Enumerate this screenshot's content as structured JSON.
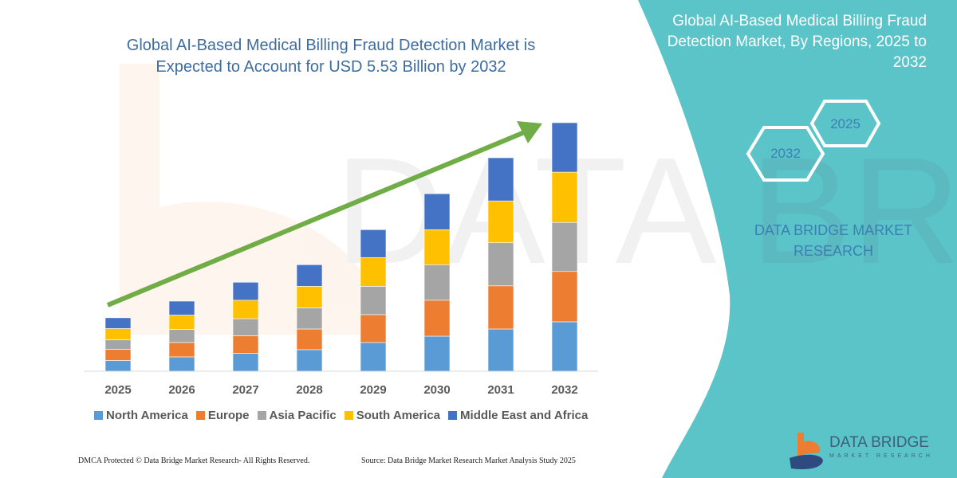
{
  "title": "Global AI-Based Medical Billing Fraud Detection Market is Expected to Account for USD 5.53 Billion by 2032",
  "side_panel": {
    "title": "Global AI-Based Medical Billing Fraud Detection Market, By Regions, 2025 to 2032",
    "hex_start": "2025",
    "hex_end": "2032",
    "brand": "DATA BRIDGE MARKET RESEARCH",
    "color": "#5bc4c9"
  },
  "logo": {
    "name": "DATA BRIDGE",
    "sub": "MARKET RESEARCH"
  },
  "footer": {
    "left": "DMCA Protected © Data Bridge Market Research-  All Rights Reserved.",
    "right": "Source: Data Bridge Market Research  Market Analysis Study 2025"
  },
  "chart_data": {
    "type": "bar",
    "stacked": true,
    "categories": [
      "2025",
      "2026",
      "2027",
      "2028",
      "2029",
      "2030",
      "2031",
      "2032"
    ],
    "series": [
      {
        "name": "North America",
        "color": "#5b9bd5",
        "values": [
          0.24,
          0.32,
          0.4,
          0.48,
          0.64,
          0.78,
          0.94,
          1.1
        ]
      },
      {
        "name": "Europe",
        "color": "#ed7d31",
        "values": [
          0.25,
          0.32,
          0.39,
          0.46,
          0.62,
          0.8,
          0.96,
          1.12
        ]
      },
      {
        "name": "Asia Pacific",
        "color": "#a5a5a5",
        "values": [
          0.21,
          0.29,
          0.38,
          0.47,
          0.63,
          0.79,
          0.96,
          1.09
        ]
      },
      {
        "name": "South America",
        "color": "#ffc000",
        "values": [
          0.25,
          0.32,
          0.41,
          0.48,
          0.64,
          0.78,
          0.93,
          1.12
        ]
      },
      {
        "name": "Middle East and Africa",
        "color": "#4472c4",
        "values": [
          0.24,
          0.31,
          0.4,
          0.48,
          0.62,
          0.8,
          0.96,
          1.1
        ]
      }
    ],
    "ylim": [
      0,
      5.53
    ],
    "grid": false,
    "legend": "bottom",
    "trend_arrow_color": "#70ad47"
  }
}
